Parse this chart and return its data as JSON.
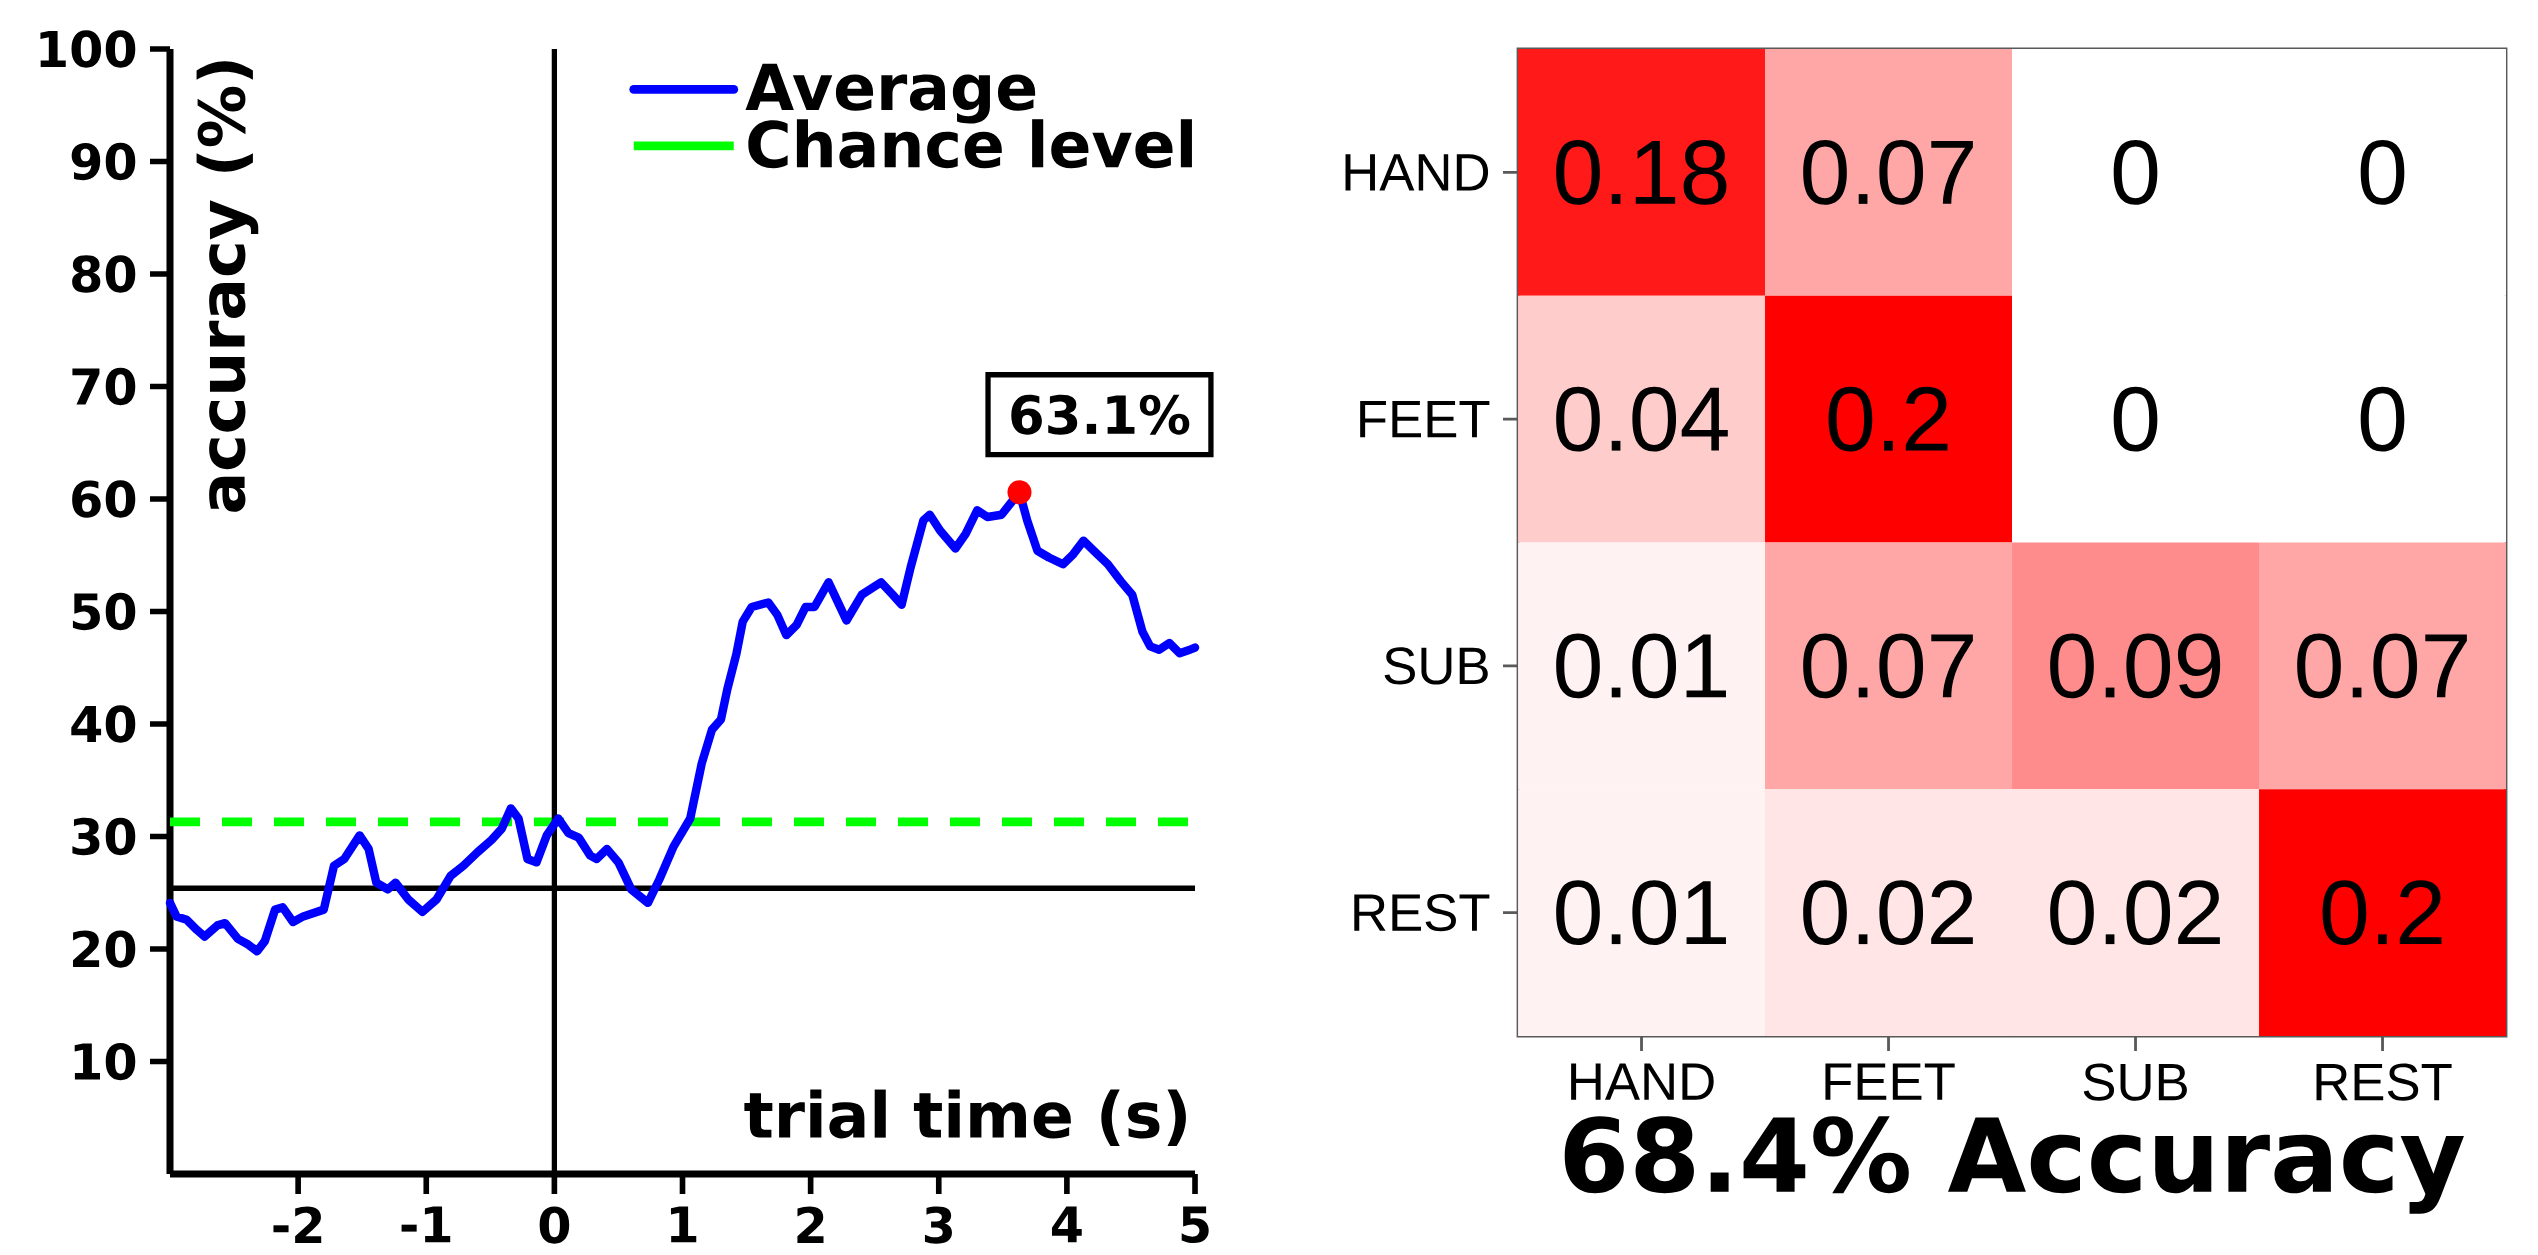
{
  "chart_data": [
    {
      "type": "line",
      "xlabel": "trial time (s)",
      "ylabel": "accuracy (%)",
      "x": [
        -3.0,
        -2.95,
        -2.87,
        -2.79,
        -2.73,
        -2.63,
        -2.57,
        -2.47,
        -2.39,
        -2.32,
        -2.26,
        -2.18,
        -2.12,
        -2.04,
        -1.96,
        -1.88,
        -1.8,
        -1.72,
        -1.64,
        -1.52,
        -1.45,
        -1.39,
        -1.3,
        -1.24,
        -1.14,
        -1.03,
        -0.92,
        -0.81,
        -0.71,
        -0.6,
        -0.49,
        -0.41,
        -0.34,
        -0.28,
        -0.21,
        -0.14,
        -0.06,
        0.03,
        0.11,
        0.19,
        0.28,
        0.33,
        0.41,
        0.5,
        0.6,
        0.73,
        0.82,
        0.93,
        1.06,
        1.15,
        1.23,
        1.3,
        1.35,
        1.42,
        1.47,
        1.54,
        1.67,
        1.74,
        1.81,
        1.89,
        1.96,
        2.03,
        2.14,
        2.21,
        2.28,
        2.4,
        2.55,
        2.64,
        2.71,
        2.78,
        2.88,
        2.93,
        3.01,
        3.13,
        3.21,
        3.3,
        3.38,
        3.49,
        3.58,
        3.63,
        3.69,
        3.77,
        3.86,
        3.97,
        4.05,
        4.13,
        4.21,
        4.32,
        4.42,
        4.51,
        4.59,
        4.65,
        4.72,
        4.8,
        4.88,
        4.96,
        5.0
      ],
      "series": [
        {
          "name": "Average",
          "color": "#0000ff",
          "values": [
            24.1,
            22.9,
            22.6,
            21.7,
            21.1,
            22.1,
            22.3,
            20.9,
            20.4,
            19.8,
            20.7,
            23.5,
            23.7,
            22.4,
            22.9,
            23.2,
            23.5,
            27.4,
            28.0,
            30.1,
            28.9,
            25.9,
            25.3,
            25.9,
            24.4,
            23.3,
            24.4,
            26.5,
            27.4,
            28.6,
            29.7,
            30.7,
            32.5,
            31.6,
            28.0,
            27.7,
            30.1,
            31.6,
            30.3,
            29.9,
            28.3,
            28.0,
            28.9,
            27.7,
            25.3,
            24.1,
            26.2,
            29.1,
            31.6,
            36.5,
            39.5,
            40.4,
            43.1,
            46.2,
            49.1,
            50.4,
            50.8,
            49.7,
            47.9,
            48.8,
            50.4,
            50.4,
            52.6,
            50.9,
            49.2,
            51.5,
            52.6,
            51.5,
            50.6,
            53.9,
            58.1,
            58.6,
            57.2,
            55.6,
            56.9,
            59.0,
            58.4,
            58.6,
            59.9,
            60.6,
            58.1,
            55.4,
            54.8,
            54.2,
            55.1,
            56.3,
            55.4,
            54.2,
            52.7,
            51.5,
            48.2,
            46.9,
            46.6,
            47.2,
            46.3,
            46.6,
            46.8
          ]
        }
      ],
      "xlim": [
        -3,
        5
      ],
      "ylim": [
        0,
        100
      ],
      "xticks": [
        -2,
        -1,
        0,
        1,
        2,
        3,
        4,
        5
      ],
      "yticks": [
        10,
        20,
        30,
        40,
        50,
        60,
        70,
        80,
        90,
        100
      ],
      "ref_lines": [
        {
          "axis": "y",
          "value": 31.3,
          "label": "Chance level",
          "color": "#00ff00",
          "line_style": "dashed"
        },
        {
          "axis": "y",
          "value": 25.4,
          "color": "#000000"
        },
        {
          "axis": "x",
          "value": 0,
          "color": "#000000"
        }
      ],
      "annotations": [
        {
          "text": "63.1%",
          "x": 3.63,
          "y": 60.6
        }
      ],
      "legend": "top right"
    },
    {
      "type": "heatmap",
      "title": "68.4% Accuracy",
      "categories": [
        "HAND",
        "FEET",
        "SUB",
        "REST"
      ],
      "y_categories": [
        "HAND",
        "FEET",
        "SUB",
        "REST"
      ],
      "cells": [
        [
          0.18,
          0.07,
          0,
          0
        ],
        [
          0.04,
          0.2,
          0,
          0
        ],
        [
          0.01,
          0.07,
          0.09,
          0.07
        ],
        [
          0.01,
          0.02,
          0.02,
          0.2
        ]
      ],
      "data_labels": true
    }
  ]
}
